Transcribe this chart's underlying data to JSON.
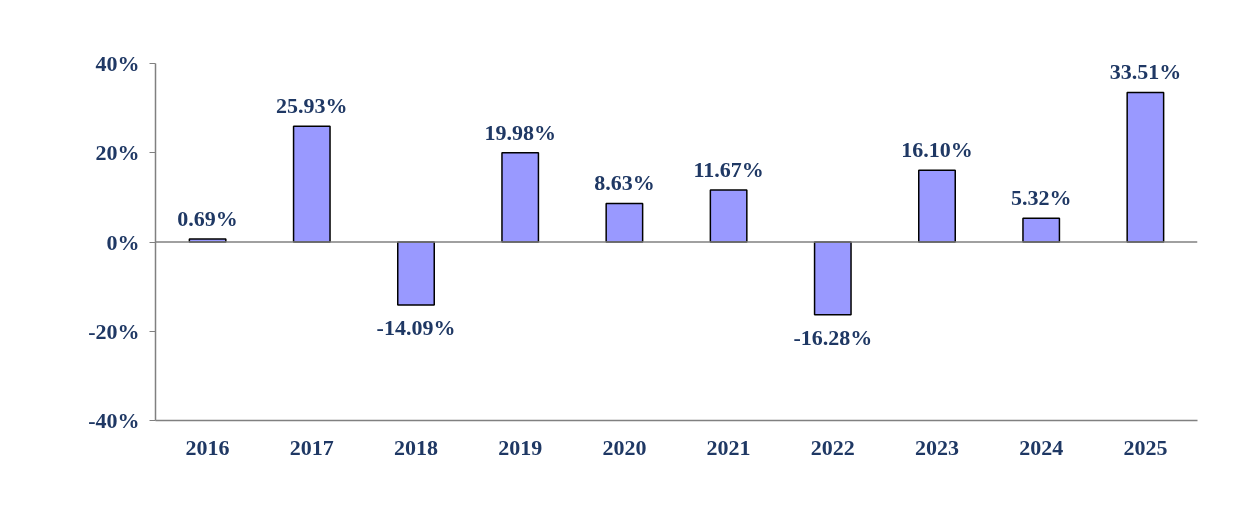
{
  "chart_data": {
    "type": "bar",
    "categories": [
      "2016",
      "2017",
      "2018",
      "2019",
      "2020",
      "2021",
      "2022",
      "2023",
      "2024",
      "2025"
    ],
    "values": [
      0.69,
      25.93,
      -14.09,
      19.98,
      8.63,
      11.67,
      -16.28,
      16.1,
      5.32,
      33.51
    ],
    "value_labels": [
      "0.69%",
      "25.93%",
      "-14.09%",
      "19.98%",
      "8.63%",
      "11.67%",
      "-16.28%",
      "16.10%",
      "5.32%",
      "33.51%"
    ],
    "color": "#9999ff",
    "ylim": [
      -40,
      40
    ],
    "yticks": [
      {
        "value": -40,
        "label": "-40%"
      },
      {
        "value": -20,
        "label": "-20%"
      },
      {
        "value": 0,
        "label": "0%"
      },
      {
        "value": 20,
        "label": "20%"
      },
      {
        "value": 40,
        "label": "40%"
      }
    ],
    "tick_labels": true
  }
}
